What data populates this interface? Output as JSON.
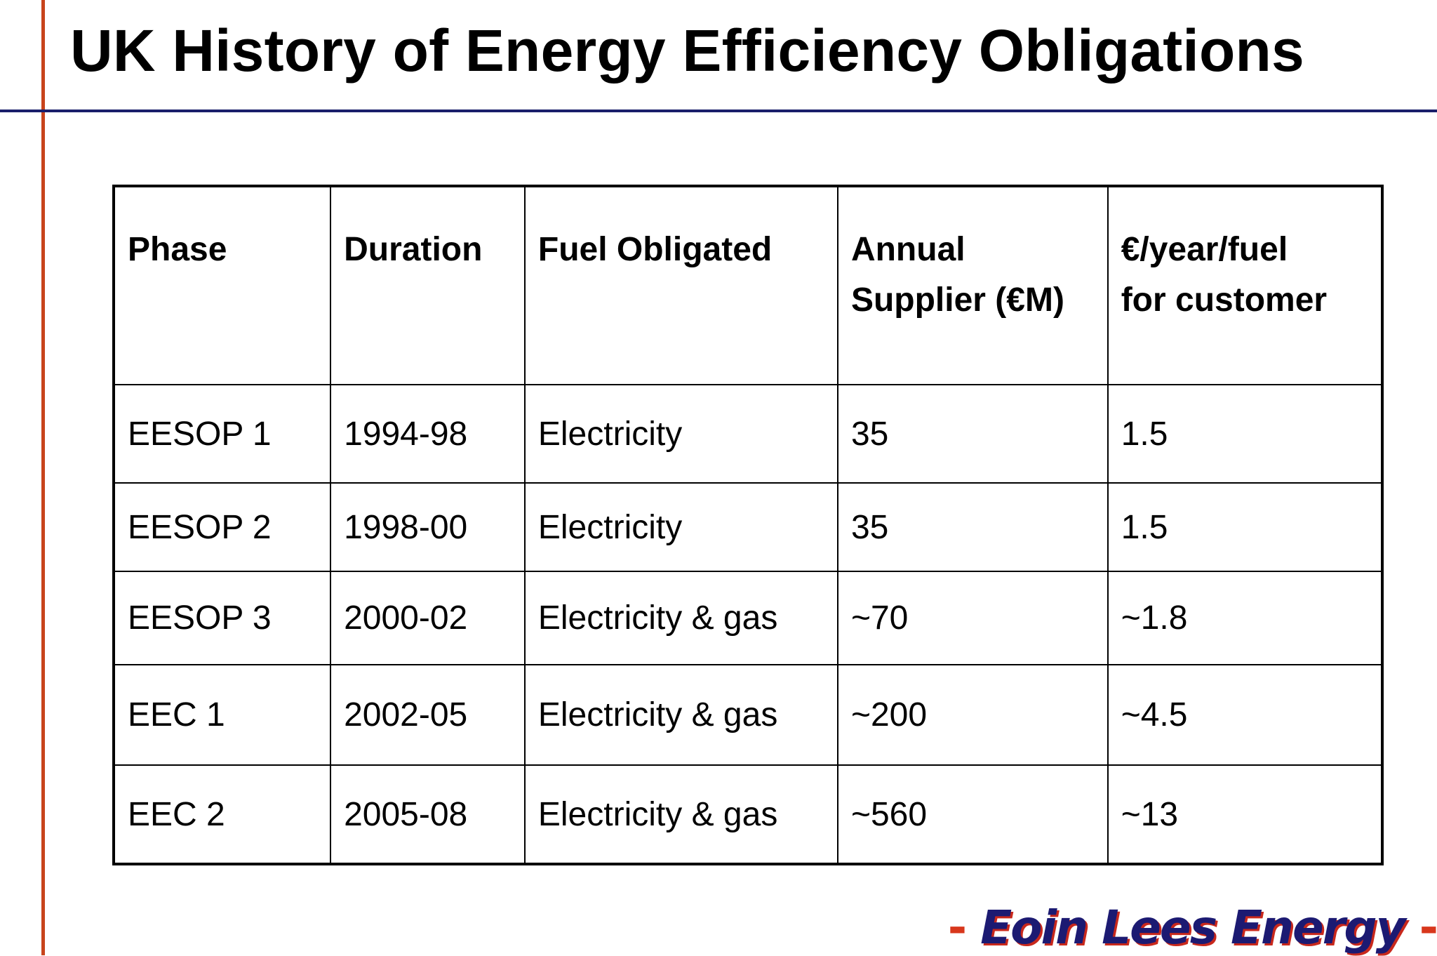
{
  "title": "UK History of Energy Efficiency Obligations",
  "table": {
    "headers": [
      [
        "Phase"
      ],
      [
        "Duration"
      ],
      [
        "Fuel Obligated"
      ],
      [
        "Annual",
        "Supplier (€M)"
      ],
      [
        "€/year/fuel",
        "for  customer"
      ]
    ],
    "rows": [
      [
        "EESOP 1",
        "1994-98",
        "Electricity",
        "35",
        "1.5"
      ],
      [
        "EESOP 2",
        "1998-00",
        "Electricity",
        "35",
        "1.5"
      ],
      [
        "EESOP 3",
        "2000-02",
        "Electricity & gas",
        "~70",
        "~1.8"
      ],
      [
        "EEC 1",
        "2002-05",
        "Electricity & gas",
        "~200",
        "~4.5"
      ],
      [
        "EEC 2",
        "2005-08",
        "Electricity & gas",
        "~560",
        "~13"
      ]
    ]
  },
  "footer": {
    "dash_left": "-",
    "brand": "Eoin Lees Energy",
    "dash_right": "-"
  },
  "colors": {
    "accent_vertical_line": "#c8441c",
    "accent_horizontal_line": "#1a1f6b",
    "brand_text": "#1c1a72",
    "brand_shadow": "#c8281c"
  }
}
